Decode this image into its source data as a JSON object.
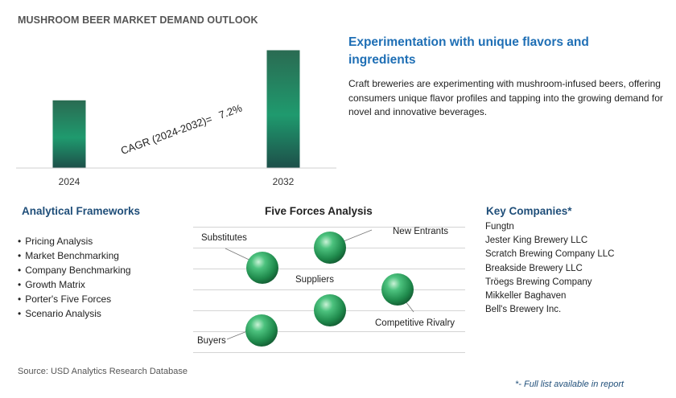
{
  "page_title": "MUSHROOM BEER MARKET DEMAND OUTLOOK",
  "chart_data": {
    "type": "bar",
    "categories": [
      "2024",
      "2032"
    ],
    "values": [
      1,
      1.74
    ],
    "title": "",
    "xlabel": "",
    "ylabel": "",
    "ylim": [
      0,
      1.9
    ],
    "grid": false,
    "annotation": {
      "label": "CAGR (2024-2032)=",
      "value": "7.2%"
    },
    "colors": {
      "bar_top": "#2a6b52",
      "bar_mid": "#1f9a6e",
      "bar_bottom": "#1d4f49"
    }
  },
  "headline": "Experimentation with unique flavors and ingredients",
  "description": "Craft breweries are experimenting with mushroom-infused beers, offering consumers unique flavor profiles and tapping into the growing demand for novel and innovative beverages.",
  "analytical_frameworks": {
    "title": "Analytical Frameworks",
    "items": [
      "Pricing Analysis",
      "Market Benchmarking",
      "Company Benchmarking",
      "Growth Matrix",
      "Porter's Five Forces",
      "Scenario Analysis"
    ]
  },
  "five_forces": {
    "title": "Five Forces Analysis",
    "labels": {
      "substitutes": "Substitutes",
      "new_entrants": "New Entrants",
      "suppliers": "Suppliers",
      "competitive_rivalry": "Competitive Rivalry",
      "buyers": "Buyers"
    },
    "sphere_color": "#2e9a5e"
  },
  "key_companies": {
    "title": "Key Companies*",
    "items": [
      "Fungtn",
      "Jester King Brewery LLC",
      "Scratch Brewing Company LLC",
      "Breakside Brewery LLC",
      "Tröegs Brewing Company",
      "Mikkeller Baghaven",
      "Bell's Brewery Inc."
    ]
  },
  "source": "Source: USD Analytics Research Database",
  "footnote": "*- Full list available in report"
}
